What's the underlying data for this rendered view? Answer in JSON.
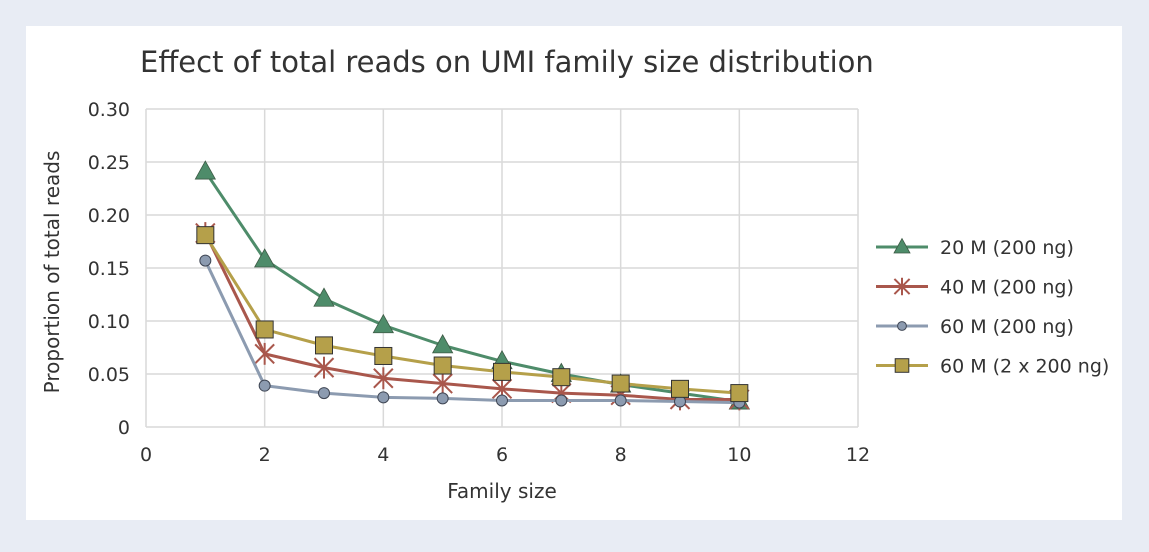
{
  "chart_data": {
    "type": "line",
    "title": "Effect of total reads on UMI family size distribution",
    "xlabel": "Family size",
    "ylabel": "Proportion of total reads",
    "xlim": [
      0,
      12
    ],
    "ylim": [
      0,
      0.3
    ],
    "x_ticks": [
      0,
      2,
      4,
      6,
      8,
      10,
      12
    ],
    "x_tick_labels": [
      "0",
      "2",
      "4",
      "6",
      "8",
      "10",
      "12"
    ],
    "y_ticks": [
      0,
      0.05,
      0.1,
      0.15,
      0.2,
      0.25,
      0.3
    ],
    "y_tick_labels": [
      "0",
      "0.05",
      "0.10",
      "0.15",
      "0.20",
      "0.25",
      "0.30"
    ],
    "grid": true,
    "legend_position": "right",
    "x": [
      1,
      2,
      3,
      4,
      5,
      6,
      7,
      8,
      9,
      10
    ],
    "series": [
      {
        "name": "20 M (200 ng)",
        "color": "#4e8c6a",
        "marker": "triangle",
        "values": [
          0.241,
          0.158,
          0.121,
          0.096,
          0.077,
          0.062,
          0.05,
          0.04,
          0.032,
          0.024
        ]
      },
      {
        "name": "40 M (200 ng)",
        "color": "#a9574c",
        "marker": "asterisk",
        "values": [
          0.183,
          0.069,
          0.056,
          0.046,
          0.041,
          0.036,
          0.032,
          0.03,
          0.026,
          0.026
        ]
      },
      {
        "name": "60 M (200 ng)",
        "color": "#8c9bb0",
        "marker": "circle",
        "values": [
          0.157,
          0.039,
          0.032,
          0.028,
          0.027,
          0.025,
          0.025,
          0.025,
          0.024,
          0.023
        ]
      },
      {
        "name": "60 M (2 x 200 ng)",
        "color": "#b5a04a",
        "marker": "square",
        "values": [
          0.181,
          0.092,
          0.077,
          0.067,
          0.058,
          0.052,
          0.047,
          0.041,
          0.036,
          0.032
        ]
      }
    ]
  }
}
